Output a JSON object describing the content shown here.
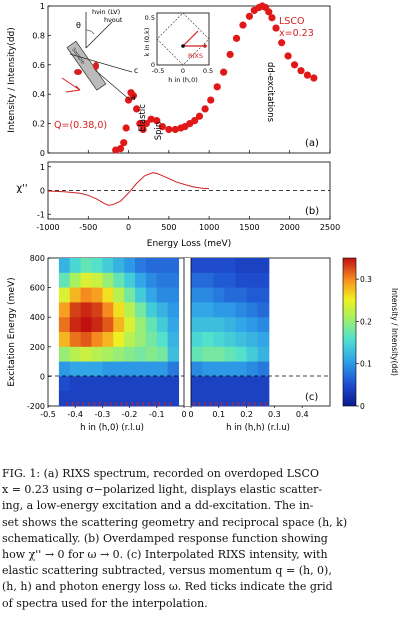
{
  "figure": {
    "panel_a": {
      "ylabel": "Intensity / Intensity(dd)",
      "xlim": [
        -1000,
        2500
      ],
      "ylim": [
        0,
        1
      ],
      "yticks": [
        "0",
        "0.2",
        "0.4",
        "0.6",
        "0.8",
        "1"
      ],
      "sample_line1": "LSCO",
      "sample_line2": "x=0.23",
      "q_label": "Q=(0.38,0)",
      "panel_label": "(a)",
      "feature_labels": {
        "elastic": "Elastic",
        "spin": "Spin",
        "dd": "dd-excitations"
      },
      "inset_geometry": {
        "hv_in": "hνin (LV)",
        "hv_out": "hνout",
        "theta": "θ",
        "axis_c": "c",
        "axis_a": "a",
        "sample_label": "Sample"
      },
      "inset_k": {
        "ylabel": "k in (0,k)",
        "xlabel": "h in (h,0)",
        "xticks": [
          "-0.5",
          "0",
          "0.5"
        ],
        "yticks": [
          "0",
          "0.5"
        ],
        "rixs_label": "RIXS"
      }
    },
    "panel_b": {
      "ylabel": "χ''",
      "yticks": [
        "-1",
        "0",
        "1"
      ],
      "panel_label": "(b)"
    },
    "shared_x": {
      "xlabel": "Energy Loss (meV)",
      "xticks": [
        "-1000",
        "-500",
        "0",
        "500",
        "1000",
        "1500",
        "2000",
        "2500"
      ]
    },
    "panel_c": {
      "ylabel": "Excitation Energy (meV)",
      "yticks": [
        "800",
        "600",
        "400",
        "200",
        "0",
        "-200"
      ],
      "xlabel_left": "h in (h,0) (r.l.u)",
      "xlabel_right": "h in (h,h) (r.l.u)",
      "xticks_left": [
        "-0.5",
        "-0.4",
        "-0.3",
        "-0.2",
        "-0.1",
        "0"
      ],
      "xticks_right": [
        "0",
        "0.1",
        "0.2",
        "0.3",
        "0.4"
      ],
      "panel_label": "(c)",
      "colorbar_label": "Intensity / Intensity(dd)",
      "colorbar_ticks": [
        "0",
        "0.1",
        "0.2",
        "0.3"
      ],
      "colorbar_range": [
        0,
        0.35
      ]
    }
  },
  "chart_data": [
    {
      "type": "scatter",
      "panel": "a",
      "xlim": [
        -1000,
        2500
      ],
      "ylim": [
        0,
        1
      ],
      "x": [
        -160,
        -100,
        -60,
        -30,
        0,
        30,
        60,
        100,
        140,
        180,
        220,
        280,
        350,
        420,
        500,
        580,
        650,
        700,
        760,
        820,
        880,
        950,
        1020,
        1100,
        1180,
        1260,
        1340,
        1420,
        1500,
        1560,
        1620,
        1660,
        1700,
        1740,
        1780,
        1830,
        1900,
        1980,
        2060,
        2140,
        2220,
        2300
      ],
      "y": [
        0.02,
        0.03,
        0.07,
        0.17,
        0.36,
        0.41,
        0.39,
        0.3,
        0.2,
        0.16,
        0.2,
        0.23,
        0.22,
        0.18,
        0.16,
        0.16,
        0.17,
        0.18,
        0.2,
        0.22,
        0.25,
        0.3,
        0.36,
        0.45,
        0.55,
        0.67,
        0.78,
        0.87,
        0.93,
        0.97,
        0.99,
        1.0,
        0.99,
        0.96,
        0.92,
        0.85,
        0.75,
        0.66,
        0.6,
        0.56,
        0.53,
        0.51
      ]
    },
    {
      "type": "line",
      "panel": "b",
      "xlim": [
        -1000,
        2500
      ],
      "ylim": [
        -1.2,
        1.2
      ],
      "x": [
        -1000,
        -800,
        -600,
        -500,
        -400,
        -300,
        -250,
        -200,
        -100,
        0,
        100,
        200,
        300,
        350,
        400,
        500,
        600,
        700,
        800,
        900,
        1000
      ],
      "y": [
        -0.02,
        -0.05,
        -0.12,
        -0.2,
        -0.35,
        -0.55,
        -0.62,
        -0.6,
        -0.45,
        -0.1,
        0.3,
        0.62,
        0.75,
        0.72,
        0.65,
        0.5,
        0.35,
        0.25,
        0.16,
        0.1,
        0.07
      ]
    },
    {
      "type": "heatmap",
      "panel": "c",
      "colorbar_range": [
        0,
        0.35
      ],
      "energy_meV": [
        750,
        650,
        550,
        450,
        350,
        250,
        150,
        50,
        -50,
        -150
      ],
      "h_h0_rlu": [
        -0.44,
        -0.4,
        -0.36,
        -0.32,
        -0.28,
        -0.24,
        -0.2,
        -0.16,
        -0.12,
        -0.08,
        -0.04
      ],
      "values_h0": [
        [
          0.12,
          0.15,
          0.17,
          0.16,
          0.14,
          0.12,
          0.1,
          0.08,
          0.07,
          0.07,
          0.07
        ],
        [
          0.17,
          0.21,
          0.24,
          0.23,
          0.2,
          0.17,
          0.14,
          0.11,
          0.09,
          0.08,
          0.08
        ],
        [
          0.24,
          0.28,
          0.3,
          0.29,
          0.26,
          0.22,
          0.18,
          0.14,
          0.11,
          0.09,
          0.09
        ],
        [
          0.29,
          0.33,
          0.34,
          0.33,
          0.3,
          0.26,
          0.22,
          0.18,
          0.14,
          0.12,
          0.1
        ],
        [
          0.31,
          0.34,
          0.35,
          0.34,
          0.32,
          0.28,
          0.24,
          0.2,
          0.17,
          0.14,
          0.11
        ],
        [
          0.28,
          0.31,
          0.32,
          0.3,
          0.28,
          0.25,
          0.22,
          0.2,
          0.18,
          0.16,
          0.12
        ],
        [
          0.2,
          0.22,
          0.23,
          0.22,
          0.21,
          0.2,
          0.19,
          0.18,
          0.19,
          0.18,
          0.13
        ],
        [
          0.1,
          0.11,
          0.11,
          0.11,
          0.1,
          0.1,
          0.1,
          0.1,
          0.1,
          0.1,
          0.08
        ],
        [
          0.05,
          0.04,
          0.04,
          0.04,
          0.04,
          0.04,
          0.04,
          0.04,
          0.04,
          0.04,
          0.04
        ],
        [
          0.04,
          0.04,
          0.04,
          0.04,
          0.04,
          0.04,
          0.04,
          0.04,
          0.04,
          0.04,
          0.04
        ]
      ],
      "h_hh_rlu": [
        0.02,
        0.06,
        0.1,
        0.14,
        0.18,
        0.22,
        0.26
      ],
      "values_hh": [
        [
          0.05,
          0.05,
          0.05,
          0.05,
          0.04,
          0.04,
          0.04
        ],
        [
          0.07,
          0.07,
          0.06,
          0.06,
          0.05,
          0.05,
          0.05
        ],
        [
          0.09,
          0.09,
          0.08,
          0.07,
          0.07,
          0.06,
          0.06
        ],
        [
          0.11,
          0.11,
          0.1,
          0.1,
          0.09,
          0.08,
          0.07
        ],
        [
          0.13,
          0.13,
          0.13,
          0.12,
          0.11,
          0.1,
          0.09
        ],
        [
          0.15,
          0.16,
          0.15,
          0.14,
          0.13,
          0.12,
          0.11
        ],
        [
          0.17,
          0.18,
          0.18,
          0.17,
          0.16,
          0.14,
          0.12
        ],
        [
          0.09,
          0.1,
          0.1,
          0.1,
          0.1,
          0.09,
          0.08
        ],
        [
          0.04,
          0.04,
          0.04,
          0.04,
          0.04,
          0.04,
          0.04
        ],
        [
          0.04,
          0.04,
          0.04,
          0.04,
          0.04,
          0.04,
          0.04
        ]
      ],
      "tick_h_h0": [
        -0.43,
        -0.41,
        -0.39,
        -0.37,
        -0.35,
        -0.33,
        -0.31,
        -0.29,
        -0.27,
        -0.25,
        -0.23,
        -0.21,
        -0.19,
        -0.17,
        -0.15,
        -0.13,
        -0.11,
        -0.09,
        -0.07,
        -0.05
      ],
      "tick_h_hh": [
        0.01,
        0.03,
        0.05,
        0.07,
        0.09,
        0.11,
        0.13,
        0.15,
        0.17,
        0.19,
        0.21,
        0.23,
        0.25,
        0.27
      ]
    }
  ],
  "caption": {
    "lines": [
      "FIG. 1: (a) RIXS spectrum, recorded on overdoped LSCO",
      "x = 0.23 using σ−polarized light, displays elastic scatter-",
      "ing, a low-energy excitation and a dd-excitation. The in-",
      "set shows the scattering geometry and reciprocal space (h, k)",
      "schematically. (b) Overdamped response function showing",
      "how χ'' → 0 for ω → 0. (c) Interpolated RIXS intensity, with",
      "elastic scattering subtracted, versus momentum q = (h, 0),",
      "(h, h) and photon energy loss ω. Red ticks indicate the grid",
      "of spectra used for the interpolation."
    ]
  }
}
